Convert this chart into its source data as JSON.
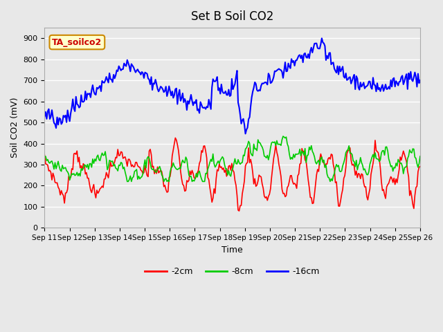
{
  "title": "Set B Soil CO2",
  "ylabel": "Soil CO2 (mV)",
  "xlabel": "Time",
  "tag_label": "TA_soilco2",
  "tag_bg": "#FFFFCC",
  "tag_border": "#CC8800",
  "tag_text_color": "#CC0000",
  "ylim": [
    0,
    950
  ],
  "yticks": [
    0,
    100,
    200,
    300,
    400,
    500,
    600,
    700,
    800,
    900
  ],
  "bg_color": "#E8E8E8",
  "plot_bg": "#F0F0F0",
  "grid_color": "#FFFFFF",
  "line_colors": {
    "2cm": "#FF0000",
    "8cm": "#00CC00",
    "16cm": "#0000FF"
  },
  "legend_labels": [
    "-2cm",
    "-8cm",
    "-16cm"
  ],
  "xtick_labels": [
    "Sep 11",
    "Sep 12",
    "Sep 13",
    "Sep 14",
    "Sep 15",
    "Sep 16",
    "Sep 17",
    "Sep 18",
    "Sep 19",
    "Sep 20",
    "Sep 21",
    "Sep 22",
    "Sep 23",
    "Sep 24",
    "Sep 25",
    "Sep 26"
  ]
}
